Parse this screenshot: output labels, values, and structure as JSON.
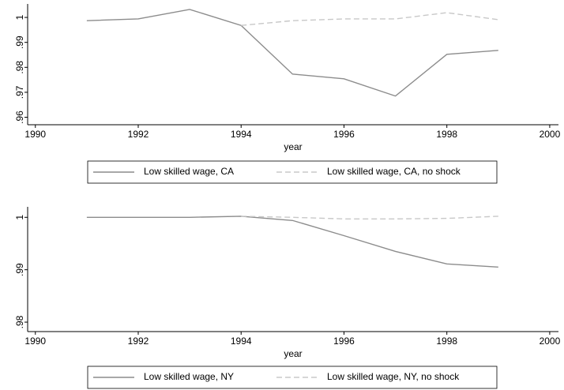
{
  "chart_data": [
    {
      "type": "line",
      "xlabel": "year",
      "x": [
        1991,
        1992,
        1993,
        1994,
        1995,
        1996,
        1997,
        1998,
        1999
      ],
      "series": [
        {
          "name": "Low skilled wage, CA",
          "color": "#8c8c8c",
          "dash": false,
          "values": [
            0.9987,
            0.9994,
            1.0032,
            0.9968,
            0.9773,
            0.9754,
            0.9685,
            0.9852,
            0.9868
          ]
        },
        {
          "name": "Low skilled wage, CA, no shock",
          "color": "#c8c8c8",
          "dash": true,
          "values": [
            null,
            null,
            null,
            0.9968,
            0.9987,
            0.9994,
            0.9994,
            1.0019,
            0.9991
          ]
        }
      ],
      "xlim": [
        1989.85,
        2000.17
      ],
      "xticks": [
        1990,
        1992,
        1994,
        1996,
        1998,
        2000
      ],
      "ylim": [
        0.957,
        1.0054
      ],
      "yticks": [
        {
          "value": 0.96,
          "label": ".96"
        },
        {
          "value": 0.97,
          "label": ".97"
        },
        {
          "value": 0.98,
          "label": ".98"
        },
        {
          "value": 0.99,
          "label": ".99"
        },
        1
      ],
      "grid": false,
      "legend": "bottom"
    },
    {
      "type": "line",
      "xlabel": "year",
      "x": [
        1991,
        1992,
        1993,
        1994,
        1995,
        1996,
        1997,
        1998,
        1999
      ],
      "series": [
        {
          "name": "Low skilled wage, NY",
          "color": "#8c8c8c",
          "dash": false,
          "values": [
            1,
            1,
            1,
            1.0002,
            0.9994,
            0.9965,
            0.9935,
            0.9911,
            0.9905
          ]
        },
        {
          "name": "Low skilled wage, NY, no shock",
          "color": "#c8c8c8",
          "dash": true,
          "values": [
            null,
            null,
            null,
            1.0002,
            1,
            0.9997,
            0.9997,
            0.9998,
            1.0002
          ]
        }
      ],
      "xlim": [
        1989.85,
        2000.17
      ],
      "xticks": [
        1990,
        1992,
        1994,
        1996,
        1998,
        2000
      ],
      "ylim": [
        0.9782,
        1.002
      ],
      "yticks": [
        {
          "value": 0.98,
          "label": ".98"
        },
        {
          "value": 0.99,
          "label": ".99"
        },
        1
      ],
      "grid": false,
      "legend": "bottom"
    }
  ]
}
